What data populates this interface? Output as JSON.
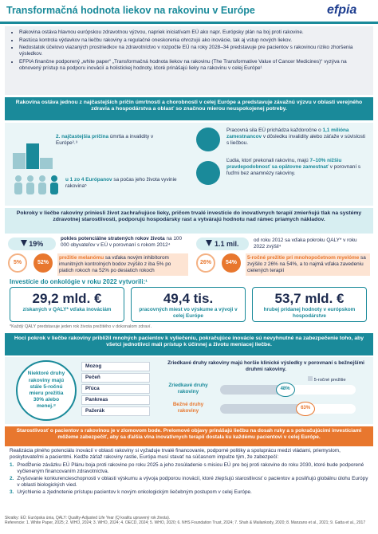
{
  "header": {
    "title": "Transformačná hodnota liekov na rakovinu v Európe",
    "logo": "efpia"
  },
  "intro_bullets": [
    "Rakovina ostáva hlavnou európskou zdravotnou výzvou, napriek iniciatívam EÚ ako napr. Európsky plán na boj proti rakovine.",
    "Rastúca kontrola výdavkov na liečbu rakoviny a regulačné oneskorenia ohrozujú ako inovácie, tak aj vstup nových liekov.",
    "Nedostatok účelovo viazaných prostriedkov na zdravotníctvo v rozpočte EÚ na roky 2028–34 predstavuje pre pacientov s rakovinou riziko zhoršenia výsledkov.",
    "EFPIA finančne podporený „white paper“ „Transformačná hodnota liekov na rakovinu (The Transformative Value of Cancer Medicines)“ vyzýva na obnovený prístup na podporu inovácií a holistickej hodnoty, ktoré prinášajú lieky na rakovinu v celej Európe¹"
  ],
  "banner_1": "Rakovina ostáva jednou z najčastejších príčin úmrtnosti a chorobnosti v celej Európe a predstavuje závažnú výzvu v oblasti verejného zdravia a hospodárstva a oblasť so značnou mierou neuspokojenej potreby.",
  "burden": {
    "rank_stat": "2. najčastejšia príčina",
    "rank_text": "úmrtia a invalidity v Európe²˒³",
    "lifetime_stat": "u 1 zo 4 Európanov",
    "lifetime_text": "sa počas jeho života vyvinie rakovina⁵",
    "workforce_pre": "Pracovná sila EÚ prichádza každoročne o",
    "workforce_stat": "1,1 milióna zamestnancov",
    "workforce_post": "v dôsledku invalidity alebo záťaže v súvislosti s liečbou.",
    "reemploy_pre": "Ľudia, ktorí prekonali rakovinu, majú",
    "reemploy_stat": "7–10% nižšiu pravdepodobnosť sa opätovne zamestnať",
    "reemploy_post": "v porovnaní s ľuďmi bez anamnézy rakoviny."
  },
  "banner_2": "Pokroky v liečbe rakoviny priniesli život zachraňujúce lieky, pričom trvalé investície do inovatívnych terapií zmierňujú tlak na systémy zdravotnej starostlivosti, podporujú hospodársky rast a vytvárajú hodnotu nad rámec priamych nákladov.",
  "progress": [
    {
      "stat": "19%",
      "stat_text": "pokles potenciálne stratených rokov života",
      "text": "na 100 000 obyvateľov v EÚ v porovnaní s rokom 2012⁴"
    },
    {
      "stat": "1.1 mil.",
      "text": "od roku 2012 sa vďaka pokroku QALY* v roku 2022 zvýšil⁴"
    },
    {
      "from": "5%",
      "to": "52%",
      "stat_text": "prežitie melanómu",
      "text": "sa vďaka novým inhibítorom imunitných kontrolných bodov zvýšilo z iba 5% po piatich rokoch na 52% po desiatich rokoch"
    },
    {
      "from": "26%",
      "to": "54%",
      "stat_text": "5-ročné prežitie pri mnohopočetnom myelóme",
      "text": "sa zvýšilo z 26% na 54%, a to najmä vďaka zavedeniu cielených terapií"
    }
  ],
  "investment": {
    "heading": "Investície do onkológie v roku 2022 vytvorili:¹",
    "items": [
      {
        "value": "29,2 mld. €",
        "text": "získaných v QALY* vďaka inováciám"
      },
      {
        "value": "49,4 tis.",
        "text": "pracovných miest vo výskume a vývoji v celej Európe"
      },
      {
        "value": "53,7 mld. €",
        "text": "hrubej pridanej hodnoty v európskom hospodárstve"
      }
    ],
    "footnote": "*Každý QALY predstavuje jeden rok života prežitého v dokonalom zdraví."
  },
  "banner_3": "Hoci pokrok v liečbe rakoviny priblížil mnohých pacientov k vyliečeniu, pokračujúce inovácie sú nevyhnutné na zabezpečenie toho, aby všetci jednotlivci mali prístup k účinnej a životu meniacej liečbe.",
  "low_survival": {
    "text": "Niektoré druhy rakoviny majú stále 5-ročnú mieru prežitia 30% alebo menej.⁸",
    "organs": [
      "Mozog",
      "Pečeň",
      "Pľúca",
      "Pankreas",
      "Pažerák"
    ]
  },
  "rare": {
    "heading": "Zriedkavé druhy rakoviny majú horšie klinické výsledky v porovnaní s bežnejšími druhmi rakoviny.",
    "legend": "5-ročné prežitie",
    "bars": [
      {
        "label": "Zriedkavé druhy rakoviny",
        "value": 48,
        "value_label": "48%"
      },
      {
        "label": "Bežné druhy rakoviny",
        "value": 63,
        "value_label": "63%"
      }
    ]
  },
  "banner_4": "Starostlivosť o pacientov s rakovinou je v zlomovom bode. Prelomové objavy prinášajú liečbu na dosah ruky a s pokračujúcimi investíciami môžeme zabezpečiť, aby sa ďalšia vlna inovatívnych terapií dostala ku každému pacientovi v celej Európe.",
  "call": {
    "text": "Realizácia plného potenciálu inovácií v oblasti rakoviny si vyžaduje trvalé financovanie, podporné politiky a spoluprácu medzi vládami, priemyslom, poskytovateľmi a pacientmi. Kedže záťaž rakoviny rastie, Európa musí stavať na súčasnom impulze tým, že zabezpečí:",
    "items": [
      {
        "n": "1.",
        "text": "Predĺženie záväzku EÚ Plánu boja proti rakovine po roku 2025 a jeho zosúladenie s misiou EÚ pre boj proti rakovine do roku 2030, ktoré bude podporené vyčleneným financovaním zdravotníctva."
      },
      {
        "n": "2.",
        "text": "Zvyšovanie konkurencieschopnosti v oblasti výskumu a vývoja podporou inovácií, ktoré zlepšujú starostlivosť o pacientov a posilňujú globálnu úlohu Európy v oblasti biologických vied."
      },
      {
        "n": "3.",
        "text": "Urýchlenie a zjednotenie prístupu pacientov k novým onkologickým liečebným postupom v celej Európe."
      }
    ]
  },
  "sources": {
    "abbr": "Skratky: EÚ: Európska únia, QALY: Quality-Adjusted Life Year (Q kvalitu upravený rok života).",
    "refs": "Referencie: 1. White Paper, 2025; 2. WHO, 2024; 3. WHO, 2024; 4. OECD, 2024; 5. WHO, 2020; 6. NHS Foundation Trust, 2024; 7. Shah & Mailankody, 2020; 8. Manzano et al., 2021; 9. Gatta et al., 2017"
  }
}
